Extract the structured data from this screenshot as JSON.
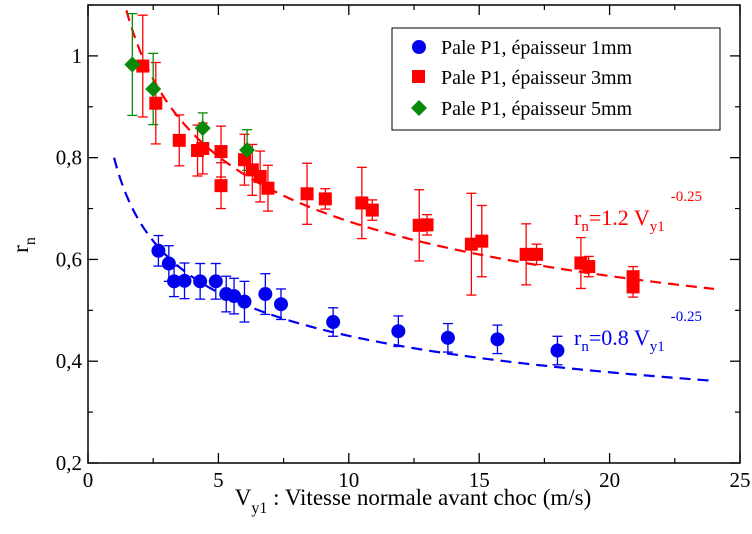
{
  "chart_data": {
    "type": "scatter",
    "xlim": [
      0,
      25
    ],
    "ylim": [
      0.2,
      1.1
    ],
    "xticks": [
      0,
      5,
      10,
      15,
      20,
      25
    ],
    "yticks": [
      0.2,
      0.4,
      0.6,
      0.8,
      1.0
    ],
    "xtick_labels": [
      "0",
      "5",
      "10",
      "15",
      "20",
      "25"
    ],
    "ytick_labels": [
      "0,2",
      "0,4",
      "0,6",
      "0,8",
      "1"
    ],
    "xlabel": {
      "main": "V",
      "sub": "y1",
      "rest": " : Vitesse normale avant choc (m/s)"
    },
    "ylabel": {
      "main": "r",
      "sub": "n"
    },
    "grid": false,
    "legend_position": "top-right",
    "series": [
      {
        "name": "Pale P1, épaisseur 1mm",
        "marker": "circle",
        "color": "#0000ee",
        "points": [
          {
            "x": 2.7,
            "y": 0.617,
            "err": 0.03
          },
          {
            "x": 3.1,
            "y": 0.592,
            "err": 0.035
          },
          {
            "x": 3.3,
            "y": 0.557,
            "err": 0.03
          },
          {
            "x": 3.7,
            "y": 0.558,
            "err": 0.035
          },
          {
            "x": 4.3,
            "y": 0.557,
            "err": 0.035
          },
          {
            "x": 4.9,
            "y": 0.557,
            "err": 0.035
          },
          {
            "x": 5.3,
            "y": 0.532,
            "err": 0.035
          },
          {
            "x": 5.6,
            "y": 0.528,
            "err": 0.035
          },
          {
            "x": 6.0,
            "y": 0.517,
            "err": 0.04
          },
          {
            "x": 6.8,
            "y": 0.532,
            "err": 0.04
          },
          {
            "x": 7.4,
            "y": 0.512,
            "err": 0.03
          },
          {
            "x": 9.4,
            "y": 0.477,
            "err": 0.028
          },
          {
            "x": 11.9,
            "y": 0.459,
            "err": 0.03
          },
          {
            "x": 13.8,
            "y": 0.446,
            "err": 0.028
          },
          {
            "x": 15.7,
            "y": 0.443,
            "err": 0.028
          },
          {
            "x": 18.0,
            "y": 0.421,
            "err": 0.028
          }
        ]
      },
      {
        "name": "Pale P1, épaisseur 3mm",
        "marker": "square",
        "color": "#ff0000",
        "points": [
          {
            "x": 2.1,
            "y": 0.98,
            "err": 0.1
          },
          {
            "x": 2.6,
            "y": 0.907,
            "err": 0.08
          },
          {
            "x": 3.5,
            "y": 0.834,
            "err": 0.05
          },
          {
            "x": 4.2,
            "y": 0.814,
            "err": 0.05
          },
          {
            "x": 4.4,
            "y": 0.818,
            "err": 0.05
          },
          {
            "x": 5.1,
            "y": 0.812,
            "err": 0.05
          },
          {
            "x": 5.1,
            "y": 0.745,
            "err": 0.045
          },
          {
            "x": 6.0,
            "y": 0.796,
            "err": 0.05
          },
          {
            "x": 6.3,
            "y": 0.776,
            "err": 0.05
          },
          {
            "x": 6.6,
            "y": 0.763,
            "err": 0.05
          },
          {
            "x": 6.9,
            "y": 0.74,
            "err": 0.045
          },
          {
            "x": 8.4,
            "y": 0.729,
            "err": 0.06
          },
          {
            "x": 9.1,
            "y": 0.719,
            "err": 0.02
          },
          {
            "x": 10.5,
            "y": 0.711,
            "err": 0.07
          },
          {
            "x": 10.9,
            "y": 0.697,
            "err": 0.02
          },
          {
            "x": 12.7,
            "y": 0.667,
            "err": 0.07
          },
          {
            "x": 13.0,
            "y": 0.668,
            "err": 0.02
          },
          {
            "x": 14.7,
            "y": 0.63,
            "err": 0.1
          },
          {
            "x": 15.1,
            "y": 0.636,
            "err": 0.07
          },
          {
            "x": 16.8,
            "y": 0.61,
            "err": 0.06
          },
          {
            "x": 17.2,
            "y": 0.61,
            "err": 0.02
          },
          {
            "x": 18.9,
            "y": 0.593,
            "err": 0.05
          },
          {
            "x": 19.2,
            "y": 0.586,
            "err": 0.02
          },
          {
            "x": 20.9,
            "y": 0.566,
            "err": 0.02
          },
          {
            "x": 20.9,
            "y": 0.546,
            "err": 0.02
          }
        ]
      },
      {
        "name": "Pale P1, épaisseur 5mm",
        "marker": "diamond",
        "color": "#0a8a0a",
        "points": [
          {
            "x": 1.7,
            "y": 0.983,
            "err": 0.1
          },
          {
            "x": 2.5,
            "y": 0.935,
            "err": 0.07
          },
          {
            "x": 4.4,
            "y": 0.858,
            "err": 0.03
          },
          {
            "x": 6.1,
            "y": 0.815,
            "err": 0.04
          }
        ]
      }
    ],
    "fits": [
      {
        "coef": 0.8,
        "exp": -0.25,
        "color": "#0000ee",
        "x_range": [
          1.0,
          24.0
        ],
        "label": {
          "r": "r",
          "rsub": "n",
          "mid": "=0.8 V",
          "vsub": "y1",
          "exp": "-0.25"
        }
      },
      {
        "coef": 1.2,
        "exp": -0.25,
        "color": "#ff0000",
        "x_range": [
          1.3,
          24.0
        ],
        "label": {
          "r": "r",
          "rsub": "n",
          "mid": "=1.2 V",
          "vsub": "y1",
          "exp": "-0.25"
        }
      }
    ]
  }
}
